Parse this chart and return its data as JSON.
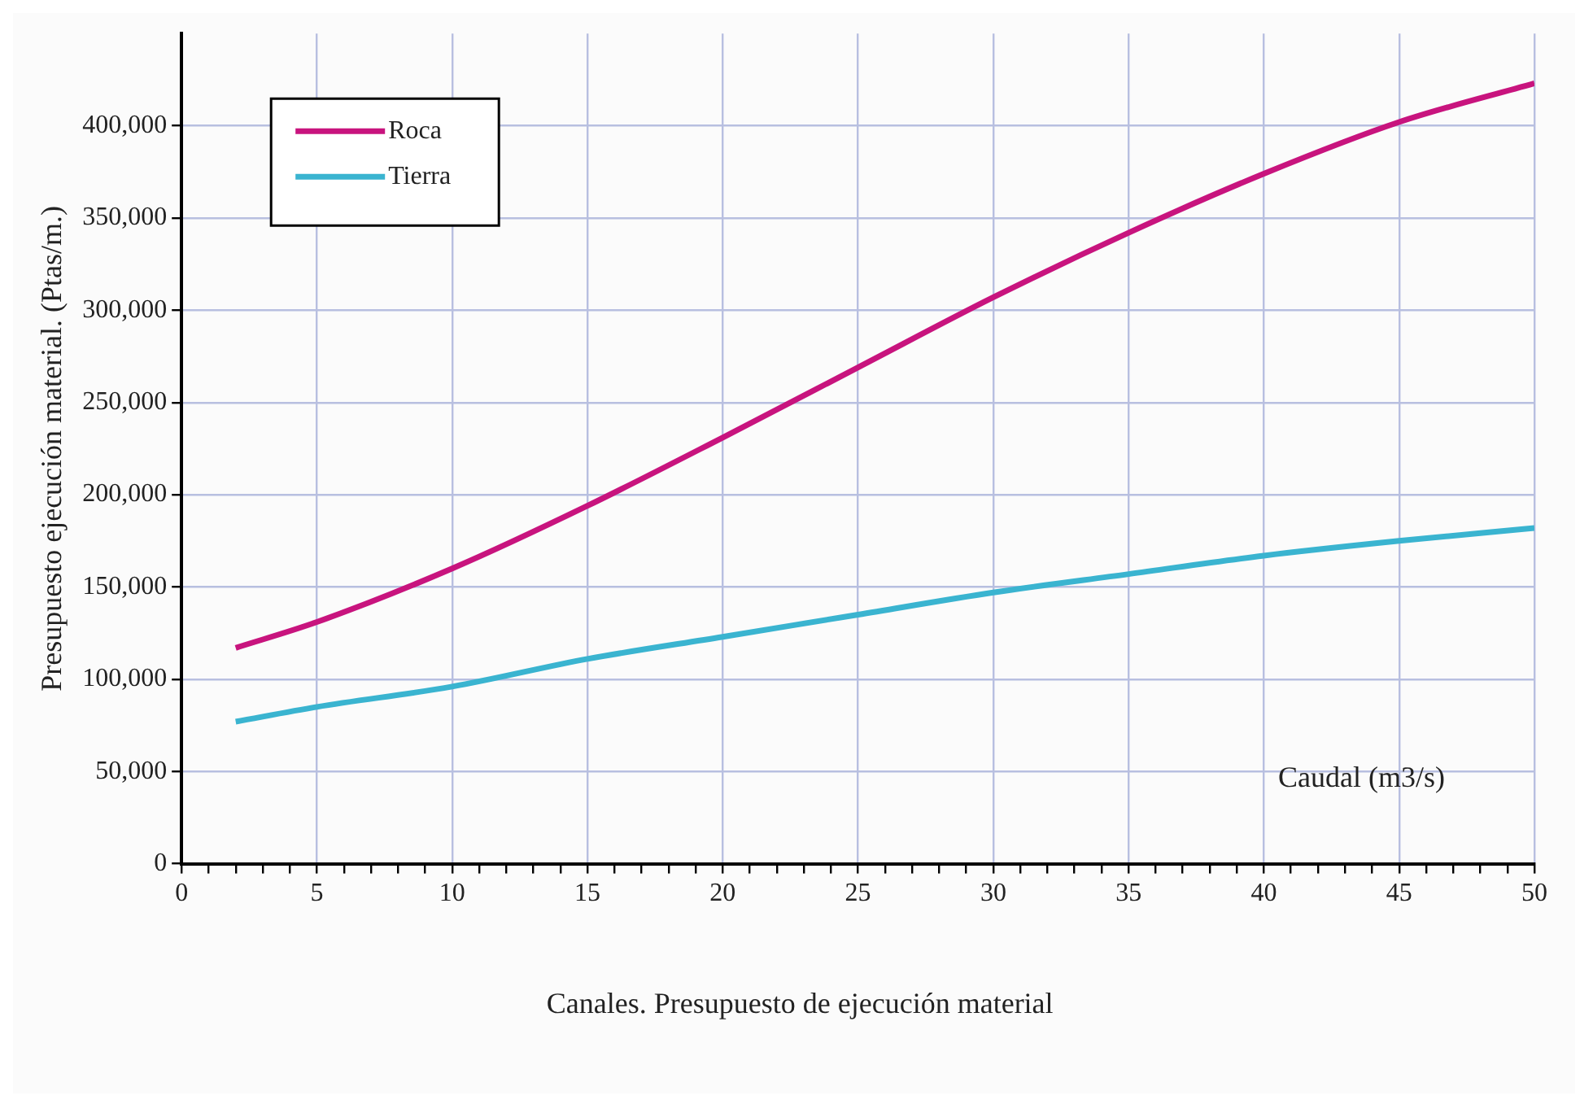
{
  "chart_data": {
    "type": "line",
    "ylabel": "Presupuesto ejecución material. (Ptas/m.)",
    "xlabel": "Caudal (m3/s)",
    "annotations": [
      "Canales. Presupuesto de ejecución material"
    ],
    "x": [
      2,
      5,
      10,
      15,
      20,
      25,
      30,
      35,
      40,
      45,
      50
    ],
    "series": [
      {
        "name": "Roca",
        "color": "#c8147e",
        "values": [
          117000,
          131000,
          160000,
          194000,
          231000,
          269000,
          307000,
          342000,
          374000,
          402000,
          423000
        ]
      },
      {
        "name": "Tierra",
        "color": "#3ab4d0",
        "values": [
          77000,
          85000,
          96000,
          111000,
          123000,
          135000,
          147000,
          157000,
          167000,
          175000,
          182000
        ]
      }
    ],
    "xlim": [
      0,
      50
    ],
    "ylim": [
      0,
      450000
    ],
    "xticks": [
      0,
      {
        "value": 1,
        "label": null
      },
      {
        "value": 2,
        "label": null
      },
      {
        "value": 3,
        "label": null
      },
      {
        "value": 4,
        "label": null
      },
      5,
      {
        "value": 6,
        "label": null
      },
      {
        "value": 7,
        "label": null
      },
      {
        "value": 8,
        "label": null
      },
      {
        "value": 9,
        "label": null
      },
      10,
      {
        "value": 11,
        "label": null
      },
      {
        "value": 12,
        "label": null
      },
      {
        "value": 13,
        "label": null
      },
      {
        "value": 14,
        "label": null
      },
      15,
      {
        "value": 16,
        "label": null
      },
      {
        "value": 17,
        "label": null
      },
      {
        "value": 18,
        "label": null
      },
      {
        "value": 19,
        "label": null
      },
      20,
      {
        "value": 21,
        "label": null
      },
      {
        "value": 22,
        "label": null
      },
      {
        "value": 23,
        "label": null
      },
      {
        "value": 24,
        "label": null
      },
      25,
      {
        "value": 26,
        "label": null
      },
      {
        "value": 27,
        "label": null
      },
      {
        "value": 28,
        "label": null
      },
      {
        "value": 29,
        "label": null
      },
      30,
      {
        "value": 31,
        "label": null
      },
      {
        "value": 32,
        "label": null
      },
      {
        "value": 33,
        "label": null
      },
      {
        "value": 34,
        "label": null
      },
      35,
      {
        "value": 36,
        "label": null
      },
      {
        "value": 37,
        "label": null
      },
      {
        "value": 38,
        "label": null
      },
      {
        "value": 39,
        "label": null
      },
      40,
      {
        "value": 41,
        "label": null
      },
      {
        "value": 42,
        "label": null
      },
      {
        "value": 43,
        "label": null
      },
      {
        "value": 44,
        "label": null
      },
      45,
      {
        "value": 46,
        "label": null
      },
      {
        "value": 47,
        "label": null
      },
      {
        "value": 48,
        "label": null
      },
      {
        "value": 49,
        "label": null
      },
      50
    ],
    "yticks": [
      {
        "value": 0,
        "label": "0"
      },
      {
        "value": 50000,
        "label": "50,000"
      },
      {
        "value": 100000,
        "label": "100,000"
      },
      {
        "value": 150000,
        "label": "150,000"
      },
      {
        "value": 200000,
        "label": "200,000"
      },
      {
        "value": 250000,
        "label": "250,000"
      },
      {
        "value": 300000,
        "label": "300,000"
      },
      {
        "value": 350000,
        "label": "350,000"
      },
      {
        "value": 400000,
        "label": "400,000"
      }
    ],
    "grid": true,
    "legend": "top left",
    "marker": "none",
    "line_style": "solid"
  }
}
